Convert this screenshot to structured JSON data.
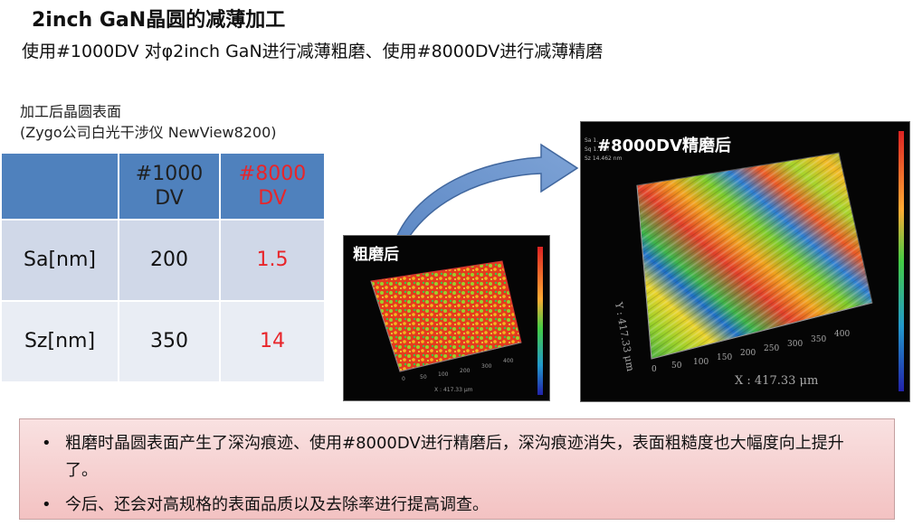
{
  "header": {
    "title": "2inch GaN晶圆的减薄加工",
    "subtitle": "使用#1000DV 对φ2inch GaN进行减薄粗磨、使用#8000DV进行减薄精磨"
  },
  "caption": {
    "line1": "加工后晶圆表面",
    "line2": "(Zygo公司白光干涉仪 NewView8200)"
  },
  "table": {
    "headers": [
      "",
      "#1000\nDV",
      "#8000\nDV"
    ],
    "header_lines": [
      [
        "#1000",
        "DV"
      ],
      [
        "#8000",
        "DV"
      ]
    ],
    "rows": [
      {
        "label": "Sa[nm]",
        "v1": "200",
        "v2": "1.5"
      },
      {
        "label": "Sz[nm]",
        "v1": "350",
        "v2": "14"
      }
    ],
    "highlight_color": "#e8252a",
    "header_color": "#4f81bd"
  },
  "images": {
    "rough_label": "粗磨后",
    "fine_label": "#8000DV精磨后",
    "axis_text": "X : 417.33 μm",
    "y_axis_text": "Y : 417.33 μm",
    "legend": {
      "sa": "Sa 1.",
      "sq": "Sq 1.  nm",
      "sz": "Sz 14.462 nm"
    }
  },
  "notes": [
    "粗磨时晶圆表面产生了深沟痕迹、使用#8000DV进行精磨后，深沟痕迹消失，表面粗糙度也大幅度向上提升了。",
    "今后、还会对高规格的表面品质以及去除率进行提高调查。"
  ]
}
